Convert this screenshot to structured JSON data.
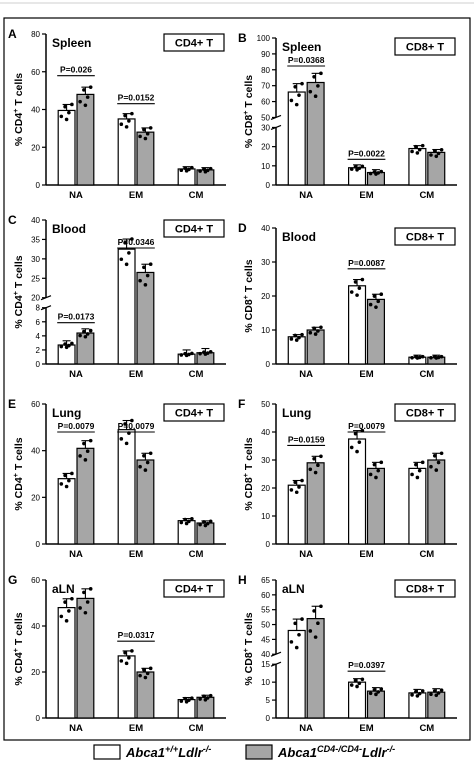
{
  "colors": {
    "wt_fill": "#ffffff",
    "ko_fill": "#a6a6a6",
    "stroke": "#000000",
    "dot": "#000000"
  },
  "legend": {
    "wt_label": "Abca1+/+Ldlr-/-",
    "ko_label": "Abca1CD4-/CD4-Ldlr-/-"
  },
  "chart_data": [
    {
      "type": "bar",
      "panel": "A",
      "tissue": "Spleen",
      "cell": "CD4+ T",
      "ylabel": "% CD4+ T cells",
      "categories": [
        "NA",
        "EM",
        "CM"
      ],
      "yticks": [
        0,
        20,
        40,
        60,
        80
      ],
      "ylim": [
        0,
        80
      ],
      "series": [
        {
          "name": "Abca1+/+Ldlr-/-",
          "values": [
            39.5,
            35,
            8.5
          ]
        },
        {
          "name": "Abca1CD4-/CD4-Ldlr-/-",
          "values": [
            48,
            28,
            8
          ]
        }
      ],
      "pvalues": [
        {
          "text": "P=0.026",
          "category": "NA"
        },
        {
          "text": "P=0.0152",
          "category": "EM"
        }
      ]
    },
    {
      "type": "bar",
      "panel": "B",
      "tissue": "Spleen",
      "cell": "CD8+ T",
      "ylabel": "% CD8+ T cells",
      "categories": [
        "NA",
        "EM",
        "CM"
      ],
      "yticks": [
        0,
        10,
        20,
        30,
        50,
        60,
        70,
        80,
        90,
        100
      ],
      "ylim": [
        0,
        100
      ],
      "axis_break": [
        30,
        50
      ],
      "series": [
        {
          "name": "Abca1+/+Ldlr-/-",
          "values": [
            66,
            9,
            19
          ]
        },
        {
          "name": "Abca1CD4-/CD4-Ldlr-/-",
          "values": [
            72,
            6.5,
            17
          ]
        }
      ],
      "pvalues": [
        {
          "text": "P=0.0368",
          "category": "NA"
        },
        {
          "text": "P=0.0022",
          "category": "EM"
        }
      ]
    },
    {
      "type": "bar",
      "panel": "C",
      "tissue": "Blood",
      "cell": "CD4+ T",
      "ylabel": "% CD4+ T cells",
      "categories": [
        "NA",
        "EM",
        "CM"
      ],
      "yticks": [
        0,
        2,
        4,
        6,
        8,
        20,
        25,
        30,
        35,
        40
      ],
      "ylim": [
        0,
        40
      ],
      "axis_break": [
        8,
        20
      ],
      "series": [
        {
          "name": "Abca1+/+Ldlr-/-",
          "values": [
            2.7,
            32.5,
            1.4
          ]
        },
        {
          "name": "Abca1CD4-/CD4-Ldlr-/-",
          "values": [
            4.4,
            26.5,
            1.6
          ]
        }
      ],
      "pvalues": [
        {
          "text": "P=0.0173",
          "category": "NA"
        },
        {
          "text": "P=0.0346",
          "category": "EM"
        }
      ]
    },
    {
      "type": "bar",
      "panel": "D",
      "tissue": "Blood",
      "cell": "CD8+ T",
      "ylabel": "% CD8+ T cells",
      "categories": [
        "NA",
        "EM",
        "CM"
      ],
      "yticks": [
        0,
        10,
        20,
        30,
        40
      ],
      "ylim": [
        0,
        40
      ],
      "series": [
        {
          "name": "Abca1+/+Ldlr-/-",
          "values": [
            8,
            23,
            2
          ]
        },
        {
          "name": "Abca1CD4-/CD4-Ldlr-/-",
          "values": [
            10,
            19,
            2
          ]
        }
      ],
      "pvalues": [
        {
          "text": "P=0.0087",
          "category": "EM"
        }
      ]
    },
    {
      "type": "bar",
      "panel": "E",
      "tissue": "Lung",
      "cell": "CD4+ T",
      "ylabel": "% CD4+ T cells",
      "categories": [
        "NA",
        "EM",
        "CM"
      ],
      "yticks": [
        0,
        20,
        40,
        60
      ],
      "ylim": [
        0,
        60
      ],
      "series": [
        {
          "name": "Abca1+/+Ldlr-/-",
          "values": [
            28,
            49,
            10
          ]
        },
        {
          "name": "Abca1CD4-/CD4-Ldlr-/-",
          "values": [
            41,
            36,
            9
          ]
        }
      ],
      "pvalues": [
        {
          "text": "P=0.0079",
          "category": "NA"
        },
        {
          "text": "P=0.0079",
          "category": "EM"
        }
      ]
    },
    {
      "type": "bar",
      "panel": "F",
      "tissue": "Lung",
      "cell": "CD8+ T",
      "ylabel": "% CD8+ T cells",
      "categories": [
        "NA",
        "EM",
        "CM"
      ],
      "yticks": [
        0,
        10,
        20,
        30,
        40,
        50
      ],
      "ylim": [
        0,
        50
      ],
      "series": [
        {
          "name": "Abca1+/+Ldlr-/-",
          "values": [
            21,
            37.5,
            27
          ]
        },
        {
          "name": "Abca1CD4-/CD4-Ldlr-/-",
          "values": [
            29,
            27,
            30
          ]
        }
      ],
      "pvalues": [
        {
          "text": "P=0.0159",
          "category": "NA"
        },
        {
          "text": "P=0.0079",
          "category": "EM"
        }
      ]
    },
    {
      "type": "bar",
      "panel": "G",
      "tissue": "aLN",
      "cell": "CD4+ T",
      "ylabel": "% CD4+ T cells",
      "categories": [
        "NA",
        "EM",
        "CM"
      ],
      "yticks": [
        0,
        20,
        40,
        60
      ],
      "ylim": [
        0,
        60
      ],
      "series": [
        {
          "name": "Abca1+/+Ldlr-/-",
          "values": [
            48,
            27,
            8
          ]
        },
        {
          "name": "Abca1CD4-/CD4-Ldlr-/-",
          "values": [
            52,
            20,
            9
          ]
        }
      ],
      "pvalues": [
        {
          "text": "P=0.0317",
          "category": "EM"
        }
      ]
    },
    {
      "type": "bar",
      "panel": "H",
      "tissue": "aLN",
      "cell": "CD8+ T",
      "ylabel": "% CD8+ T cells",
      "categories": [
        "NA",
        "EM",
        "CM"
      ],
      "yticks": [
        0,
        5,
        10,
        15,
        40,
        45,
        50,
        55,
        60,
        65
      ],
      "ylim": [
        0,
        65
      ],
      "axis_break": [
        15,
        40
      ],
      "series": [
        {
          "name": "Abca1+/+Ldlr-/-",
          "values": [
            48,
            10,
            7
          ]
        },
        {
          "name": "Abca1CD4-/CD4-Ldlr-/-",
          "values": [
            52,
            7.5,
            7.2
          ]
        }
      ],
      "pvalues": [
        {
          "text": "P=0.0397",
          "category": "EM"
        }
      ]
    }
  ]
}
